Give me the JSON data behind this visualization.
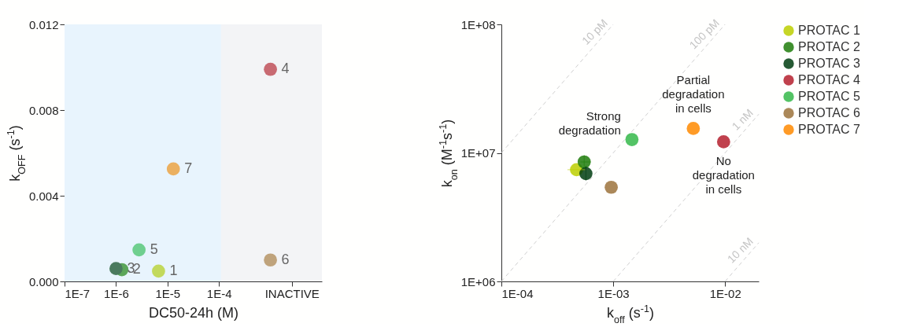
{
  "chart_data": [
    {
      "type": "scatter",
      "xlabel": "DC50-24h (M)",
      "ylabel": "k$_{OFF}$ (s$^{-1}$)",
      "log": "x",
      "xlim": [
        1e-07,
        0.01
      ],
      "xticks": [
        {
          "value": 1e-07,
          "label": "1E-7"
        },
        {
          "value": 1e-06,
          "label": "1E-6"
        },
        {
          "value": 1e-05,
          "label": "1E-5"
        },
        {
          "value": 0.0001,
          "label": "1E-4"
        },
        {
          "value": 0.0026,
          "label": "INACTIVE"
        }
      ],
      "ylim": [
        0,
        0.012
      ],
      "yticks": [
        {
          "value": 0,
          "label": "0.000"
        },
        {
          "value": 0.004,
          "label": "0.004"
        },
        {
          "value": 0.008,
          "label": "0.008"
        },
        {
          "value": 0.012,
          "label": "0.012"
        }
      ],
      "grid": false,
      "legend": false,
      "marker": "circle",
      "bands": [
        {
          "axis": "x",
          "from": 1e-07,
          "to": 0.00011,
          "color": "#e8f4fd"
        },
        {
          "axis": "x",
          "from": 0.00011,
          "to": 0.01,
          "color": "#f3f4f6"
        }
      ],
      "series": [
        {
          "name": "1",
          "color": "#c2d95c",
          "x": [
            6.7e-06
          ],
          "values": [
            0.00048
          ]
        },
        {
          "name": "2",
          "color": "#5ca65a",
          "x": [
            1.3e-06
          ],
          "values": [
            0.00055
          ]
        },
        {
          "name": "3",
          "color": "#4a7a5e",
          "x": [
            1e-06
          ],
          "values": [
            0.0006
          ]
        },
        {
          "name": "4",
          "color": "#c86a72",
          "x": [
            0.001
          ],
          "values": [
            0.0099
          ]
        },
        {
          "name": "5",
          "color": "#6fcf8f",
          "x": [
            2.8e-06
          ],
          "values": [
            0.00147
          ]
        },
        {
          "name": "6",
          "color": "#bfa37c",
          "x": [
            0.001
          ],
          "values": [
            0.001
          ]
        },
        {
          "name": "7",
          "color": "#ebb060",
          "x": [
            1.3e-05
          ],
          "values": [
            0.00525
          ]
        }
      ]
    },
    {
      "type": "scatter",
      "xlabel": "k$_{off}$ (s$^{-1}$)",
      "ylabel": "k$_{on}$ (M$^{-1}$s$^{-1}$)",
      "log": "xy",
      "xlim": [
        0.0001,
        0.02
      ],
      "xticks": [
        {
          "value": 0.0001,
          "label": "1E-04"
        },
        {
          "value": 0.001,
          "label": "1E-03"
        },
        {
          "value": 0.01,
          "label": "1E-02"
        }
      ],
      "ylim": [
        1000000,
        100000000
      ],
      "yticks": [
        {
          "value": 1000000,
          "label": "1E+06"
        },
        {
          "value": 10000000,
          "label": "1E+07"
        },
        {
          "value": 100000000,
          "label": "1E+08"
        }
      ],
      "grid": false,
      "legend": "right",
      "marker": "circle",
      "annotations": [
        {
          "text": "Strong\ndegradation",
          "x": 0.00147,
          "y": 12700000
        },
        {
          "text": "Partial\ndegradation\nin cells",
          "x": 0.0052,
          "y": 15500000
        },
        {
          "text": "No\ndegradation\nin cells",
          "x": 0.0097,
          "y": 12200000
        }
      ],
      "series": [
        {
          "name": "10 pM",
          "type": "line",
          "marker": "none",
          "line_style": "dashed",
          "color": "#d0d0d0",
          "x": [
            0.0001,
            0.001
          ],
          "values": [
            10000000,
            100000000
          ]
        },
        {
          "name": "100 pM",
          "type": "line",
          "marker": "none",
          "line_style": "dashed",
          "color": "#d0d0d0",
          "x": [
            0.0001,
            0.01
          ],
          "values": [
            1000000,
            100000000
          ]
        },
        {
          "name": "1 nM",
          "type": "line",
          "marker": "none",
          "line_style": "dashed",
          "color": "#d0d0d0",
          "x": [
            0.001,
            0.02
          ],
          "values": [
            1000000,
            20000000
          ]
        },
        {
          "name": "10 nM",
          "type": "line",
          "marker": "none",
          "line_style": "dashed",
          "color": "#d0d0d0",
          "x": [
            0.01,
            0.02
          ],
          "values": [
            1000000,
            2000000
          ]
        },
        {
          "name": "PROTAC 1",
          "color": "#bccf00",
          "x": [
            0.00047
          ],
          "values": [
            7400000
          ],
          "xerrors": [
            [
              0.00039,
              0.00056
            ]
          ]
        },
        {
          "name": "PROTAC 2",
          "color": "#1e7d0a",
          "x": [
            0.00055
          ],
          "values": [
            8500000
          ],
          "xerrors": [
            [
              0.00051,
              0.00063
            ]
          ],
          "errors": [
            [
              7600000,
              9600000
            ]
          ]
        },
        {
          "name": "PROTAC 3",
          "color": "#003d10",
          "x": [
            0.00057
          ],
          "values": [
            6900000
          ],
          "errors": [
            [
              6100000,
              7900000
            ]
          ]
        },
        {
          "name": "PROTAC 4",
          "color": "#b5202e",
          "x": [
            0.0097
          ],
          "values": [
            12200000
          ]
        },
        {
          "name": "PROTAC 5",
          "color": "#35b84a",
          "x": [
            0.00147
          ],
          "values": [
            12700000
          ]
        },
        {
          "name": "PROTAC 6",
          "color": "#9c733c",
          "x": [
            0.00096
          ],
          "values": [
            5400000
          ]
        },
        {
          "name": "PROTAC 7",
          "color": "#ff8a00",
          "x": [
            0.0052
          ],
          "values": [
            15500000
          ]
        }
      ]
    }
  ]
}
